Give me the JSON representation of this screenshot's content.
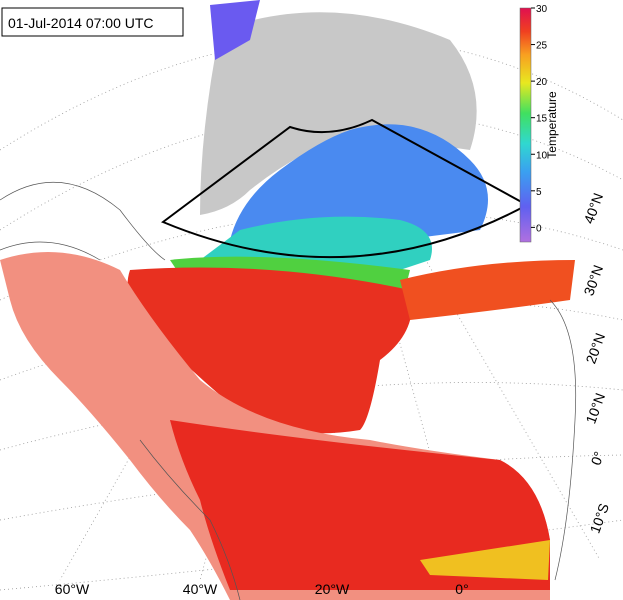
{
  "title": "01-Jul-2014 07:00 UTC",
  "colorbar": {
    "label": "Temperature",
    "lim": [
      -2,
      30
    ],
    "ticks": [
      0,
      5,
      10,
      15,
      20,
      25,
      30
    ]
  },
  "lat_labels": [
    "40°N",
    "30°N",
    "20°N",
    "10°N",
    "0°",
    "10°S"
  ],
  "lon_labels": [
    "60°W",
    "40°W",
    "20°W",
    "0°"
  ]
}
